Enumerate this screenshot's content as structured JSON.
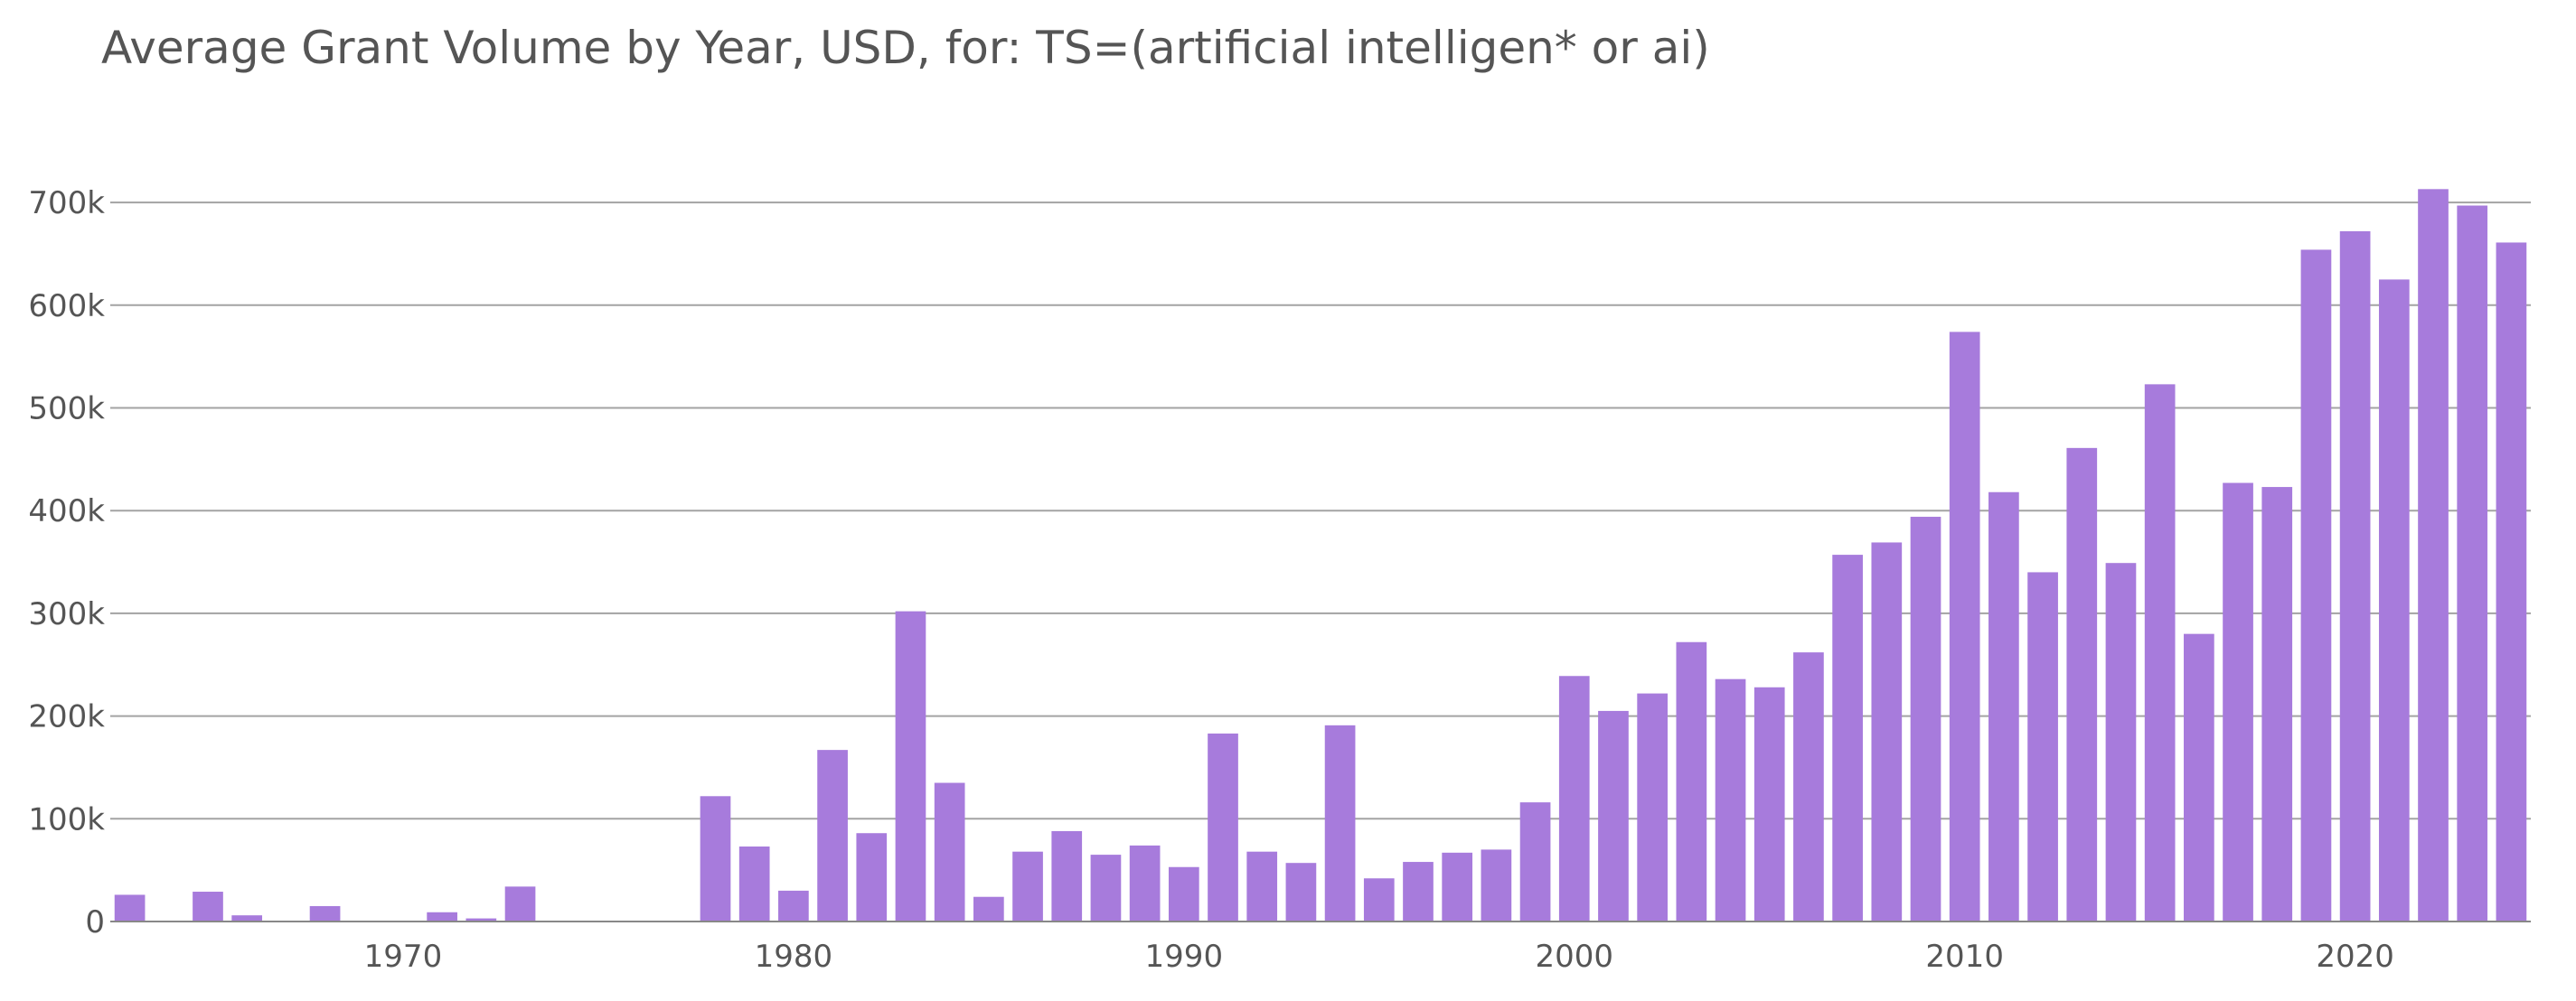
{
  "chart_data": {
    "type": "bar",
    "title": "Average Grant Volume by Year, USD, for: TS=(artificial intelligen* or ai)",
    "xlabel": "",
    "ylabel": "",
    "xlim": [
      1962.5,
      2024.5
    ],
    "ylim": [
      0,
      730000
    ],
    "grid": "horizontal",
    "legend": "none",
    "bar_color": "#a77bdc",
    "y_ticks": [
      {
        "value": 0,
        "label": "0"
      },
      {
        "value": 100000,
        "label": "100k"
      },
      {
        "value": 200000,
        "label": "200k"
      },
      {
        "value": 300000,
        "label": "300k"
      },
      {
        "value": 400000,
        "label": "400k"
      },
      {
        "value": 500000,
        "label": "500k"
      },
      {
        "value": 600000,
        "label": "600k"
      },
      {
        "value": 700000,
        "label": "700k"
      }
    ],
    "x_ticks": [
      {
        "value": 1970,
        "label": "1970"
      },
      {
        "value": 1980,
        "label": "1980"
      },
      {
        "value": 1990,
        "label": "1990"
      },
      {
        "value": 2000,
        "label": "2000"
      },
      {
        "value": 2010,
        "label": "2010"
      },
      {
        "value": 2020,
        "label": "2020"
      }
    ],
    "x": [
      1963,
      1965,
      1966,
      1968,
      1971,
      1972,
      1973,
      1978,
      1979,
      1980,
      1981,
      1982,
      1983,
      1984,
      1985,
      1986,
      1987,
      1988,
      1989,
      1990,
      1991,
      1992,
      1993,
      1994,
      1995,
      1996,
      1997,
      1998,
      1999,
      2000,
      2001,
      2002,
      2003,
      2004,
      2005,
      2006,
      2007,
      2008,
      2009,
      2010,
      2011,
      2012,
      2013,
      2014,
      2015,
      2016,
      2017,
      2018,
      2019,
      2020,
      2021,
      2022,
      2023,
      2024
    ],
    "values": [
      26000,
      29000,
      6000,
      15000,
      9000,
      3000,
      34000,
      122000,
      73000,
      30000,
      167000,
      86000,
      302000,
      135000,
      24000,
      68000,
      88000,
      65000,
      74000,
      53000,
      183000,
      68000,
      57000,
      191000,
      42000,
      58000,
      67000,
      70000,
      116000,
      239000,
      205000,
      222000,
      272000,
      236000,
      228000,
      262000,
      357000,
      369000,
      394000,
      574000,
      418000,
      340000,
      461000,
      349000,
      523000,
      280000,
      427000,
      423000,
      654000,
      672000,
      625000,
      713000,
      697000,
      661000
    ]
  }
}
